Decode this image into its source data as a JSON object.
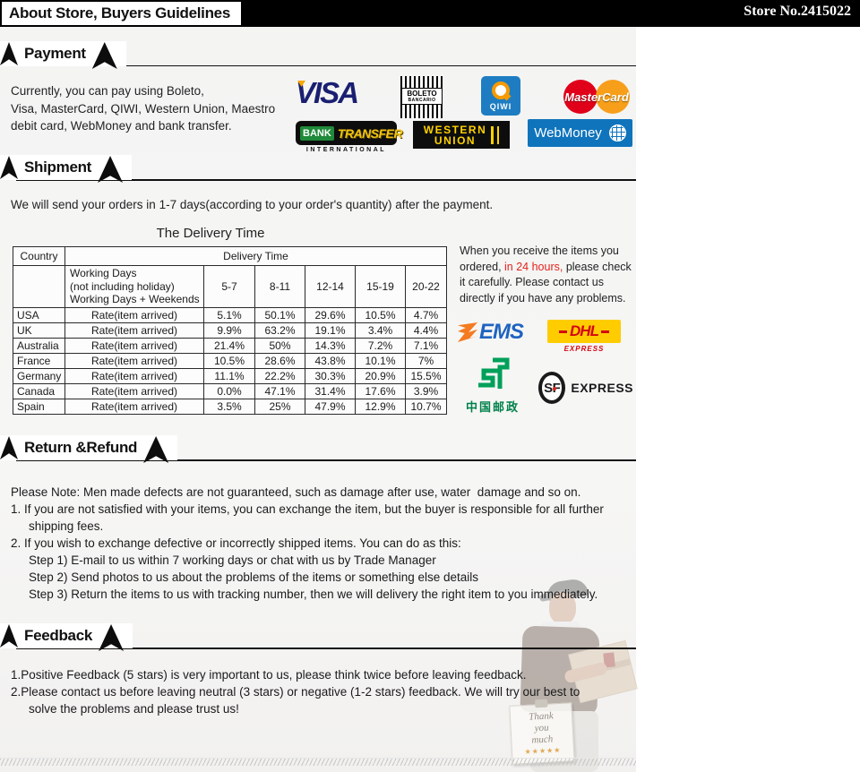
{
  "header": {
    "title": "About Store, Buyers Guidelines",
    "store_no": "Store No.2415022"
  },
  "sections": {
    "payment": {
      "title": "Payment"
    },
    "shipment": {
      "title": "Shipment"
    },
    "return_refund": {
      "title": "Return &Refund"
    },
    "feedback": {
      "title": "Feedback"
    }
  },
  "payment": {
    "lines": [
      {
        "text": "Currently, you can pay using Boleto,"
      },
      {
        "text": "Visa, MasterCard, QIWI, Western Union, Maestro"
      },
      {
        "text": "debit card, WebMoney and bank transfer."
      }
    ],
    "logos": {
      "visa": "VISA",
      "boleto": {
        "line1": "BOLETO",
        "line2": "BANCARIO"
      },
      "qiwi": {
        "label": "QIWI"
      },
      "mastercard": "MasterCard",
      "bank_transfer": {
        "bank": "BANK",
        "transfer": "TRANSFER",
        "sub": "INTERNATIONAL"
      },
      "western_union": {
        "line1": "WESTERN",
        "line2": "UNION"
      },
      "webmoney": "WebMoney"
    }
  },
  "shipment": {
    "intro": "We will send your orders in 1-7 days(according to your order's quantity) after the payment.",
    "table_title": "The Delivery Time",
    "table": {
      "country_header": "Country",
      "delivery_header": "Delivery Time",
      "working_days": "Working Days\n(not including holiday)\nWorking Days + Weekends",
      "day_ranges": [
        "5-7",
        "8-11",
        "12-14",
        "15-19",
        "20-22"
      ],
      "rate_label": "Rate(item arrived)",
      "rows": [
        {
          "country": "USA",
          "rates": [
            "5.1%",
            "50.1%",
            "29.6%",
            "10.5%",
            "4.7%"
          ]
        },
        {
          "country": "UK",
          "rates": [
            "9.9%",
            "63.2%",
            "19.1%",
            "3.4%",
            "4.4%"
          ]
        },
        {
          "country": "Australia",
          "rates": [
            "21.4%",
            "50%",
            "14.3%",
            "7.2%",
            "7.1%"
          ]
        },
        {
          "country": "France",
          "rates": [
            "10.5%",
            "28.6%",
            "43.8%",
            "10.1%",
            "7%"
          ]
        },
        {
          "country": "Germany",
          "rates": [
            "11.1%",
            "22.2%",
            "30.3%",
            "20.9%",
            "15.5%"
          ]
        },
        {
          "country": "Canada",
          "rates": [
            "0.0%",
            "47.1%",
            "31.4%",
            "17.6%",
            "3.9%"
          ]
        },
        {
          "country": "Spain",
          "rates": [
            "3.5%",
            "25%",
            "47.9%",
            "12.9%",
            "10.7%"
          ]
        }
      ]
    },
    "notice": {
      "pre": "When you receive the items you ordered, ",
      "highlight": "in 24 hours,",
      "post": " please check it carefully. Please contact us directly if you have any problems."
    },
    "carriers": {
      "ems": "EMS",
      "dhl": {
        "name": "DHL",
        "sub": "EXPRESS"
      },
      "china_post": "中国邮政",
      "sf": {
        "name": "SF",
        "sub": "EXPRESS"
      }
    }
  },
  "return_refund": {
    "lines": [
      {
        "text": "Please Note: Men made defects are not guaranteed, such as damage after use, water  damage and so on."
      },
      {
        "text": "1. If you are not satisfied with your items, you can exchange the item, but the buyer is responsible for all further"
      },
      {
        "text": "shipping fees.",
        "cls": "indent1"
      },
      {
        "text": "2. If you wish to exchange defective or incorrectly shipped items. You can do as this:"
      },
      {
        "text": "Step 1) E-mail to us within 7 working days or chat with us by Trade Manager",
        "cls": "indent2"
      },
      {
        "text": "Step 2) Send photos to us about the problems of the items or something else details",
        "cls": "indent2"
      },
      {
        "text": "Step 3) Return the items to us with tracking number, then we will delivery the right item to you immediately.",
        "cls": "indent2"
      }
    ]
  },
  "feedback": {
    "lines": [
      {
        "text": "1.Positive Feedback (5 stars) is very important to us, please think twice before leaving feedback."
      },
      {
        "text": "2.Please contact us before leaving neutral (3 stars) or negative (1-2 stars) feedback. We will try our best to"
      },
      {
        "text": "solve the problems and please trust us!",
        "cls": "indent1"
      }
    ]
  },
  "thank_sign": {
    "text": "Thank\nyou\nmuch",
    "stars": "★★★★★"
  },
  "colors": {
    "highlight_red": "#e3241d",
    "visa_blue": "#1a1f71",
    "qiwi_blue": "#1e7dc2",
    "qiwi_orange": "#f59b00",
    "mastercard_red": "#e1001a",
    "mastercard_orange": "#f79f1a",
    "bank_green": "#1f8a3a",
    "bank_yellow": "#f2c411",
    "wu_yellow": "#ffd200",
    "webmoney_blue": "#0f74bc",
    "ems_blue": "#1f63c0",
    "ems_orange": "#f47b20",
    "dhl_yellow": "#ffcc00",
    "dhl_red": "#d40511",
    "china_post_green": "#00814a",
    "sf_black": "#1a1a1a"
  }
}
